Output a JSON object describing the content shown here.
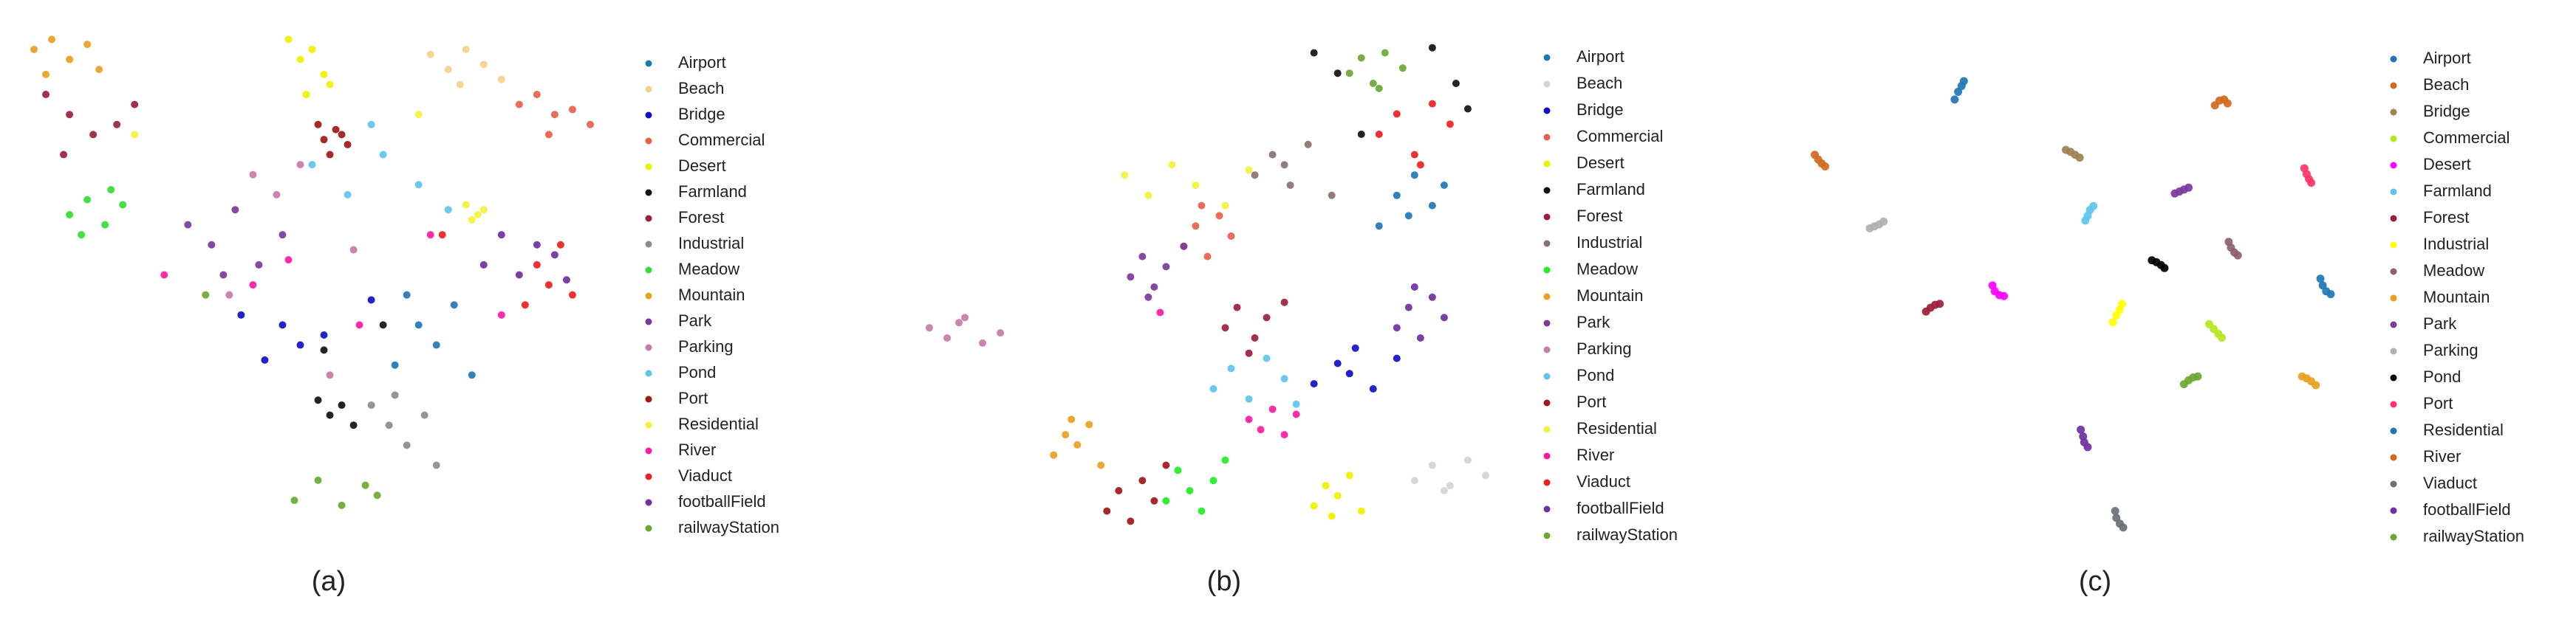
{
  "chart_data": [
    {
      "type": "scatter",
      "caption": "(a)",
      "xlim": [
        0,
        100
      ],
      "ylim": [
        0,
        100
      ],
      "series": [
        {
          "name": "Airport",
          "color": "#1f77b4",
          "x": [
            64,
            68,
            71,
            74,
            77,
            66
          ],
          "values": [
            32,
            40,
            36,
            44,
            30,
            46
          ]
        },
        {
          "name": "Beach",
          "color": "#f5d08a",
          "x": [
            70,
            73,
            76,
            79,
            82,
            75
          ],
          "values": [
            94,
            91,
            95,
            92,
            89,
            88
          ]
        },
        {
          "name": "Bridge",
          "color": "#1010c8",
          "x": [
            45,
            48,
            38,
            52,
            42,
            60
          ],
          "values": [
            40,
            36,
            42,
            38,
            33,
            45
          ]
        },
        {
          "name": "Commercial",
          "color": "#e8604c",
          "x": [
            85,
            88,
            91,
            94,
            97,
            90
          ],
          "values": [
            84,
            86,
            82,
            83,
            80,
            78
          ]
        },
        {
          "name": "Desert",
          "color": "#f0f000",
          "x": [
            46,
            48,
            50,
            52,
            53,
            49
          ],
          "values": [
            97,
            93,
            95,
            90,
            88,
            86
          ]
        },
        {
          "name": "Farmland",
          "color": "#111111",
          "x": [
            51,
            53,
            55,
            57,
            52,
            62
          ],
          "values": [
            25,
            22,
            24,
            20,
            35,
            40
          ]
        },
        {
          "name": "Forest",
          "color": "#9b1f3a",
          "x": [
            5,
            9,
            13,
            17,
            20,
            8
          ],
          "values": [
            86,
            82,
            78,
            80,
            84,
            74
          ]
        },
        {
          "name": "Industrial",
          "color": "#8c8c8c",
          "x": [
            60,
            63,
            66,
            69,
            71,
            64
          ],
          "values": [
            24,
            20,
            16,
            22,
            12,
            26
          ]
        },
        {
          "name": "Meadow",
          "color": "#33dd33",
          "x": [
            9,
            12,
            15,
            18,
            11,
            16
          ],
          "values": [
            62,
            65,
            60,
            64,
            58,
            67
          ]
        },
        {
          "name": "Mountain",
          "color": "#e8a020",
          "x": [
            3,
            6,
            9,
            12,
            14,
            5
          ],
          "values": [
            95,
            97,
            93,
            96,
            91,
            90
          ]
        },
        {
          "name": "Park",
          "color": "#7a3a9a",
          "x": [
            29,
            33,
            37,
            41,
            45,
            35
          ],
          "values": [
            60,
            56,
            63,
            52,
            58,
            50
          ]
        },
        {
          "name": "Parking",
          "color": "#c87aa8",
          "x": [
            40,
            44,
            48,
            53,
            36,
            57
          ],
          "values": [
            70,
            66,
            72,
            30,
            46,
            55
          ]
        },
        {
          "name": "Pond",
          "color": "#5ec4ee",
          "x": [
            50,
            56,
            62,
            68,
            73,
            60
          ],
          "values": [
            72,
            66,
            74,
            68,
            63,
            80
          ]
        },
        {
          "name": "Port",
          "color": "#a01818",
          "x": [
            51,
            52,
            54,
            56,
            55,
            53
          ],
          "values": [
            80,
            77,
            79,
            76,
            78,
            74
          ]
        },
        {
          "name": "Residential",
          "color": "#f2f23a",
          "x": [
            76,
            77,
            79,
            78,
            68,
            20
          ],
          "values": [
            64,
            61,
            63,
            62,
            82,
            78
          ]
        },
        {
          "name": "River",
          "color": "#ff1aa0",
          "x": [
            40,
            46,
            58,
            70,
            25,
            82
          ],
          "values": [
            48,
            53,
            40,
            58,
            50,
            42
          ]
        },
        {
          "name": "Viaduct",
          "color": "#ee2020",
          "x": [
            86,
            88,
            90,
            92,
            94,
            72
          ],
          "values": [
            44,
            52,
            48,
            56,
            46,
            58
          ]
        },
        {
          "name": "footballField",
          "color": "#7030a0",
          "x": [
            79,
            82,
            85,
            88,
            91,
            93
          ],
          "values": [
            52,
            58,
            50,
            56,
            54,
            49
          ]
        },
        {
          "name": "railwayStation",
          "color": "#6aa832",
          "x": [
            47,
            51,
            55,
            59,
            61,
            32
          ],
          "values": [
            5,
            9,
            4,
            8,
            6,
            46
          ]
        }
      ]
    },
    {
      "type": "scatter",
      "caption": "(b)",
      "xlim": [
        0,
        100
      ],
      "ylim": [
        0,
        100
      ],
      "series": [
        {
          "name": "Airport",
          "color": "#1f77b4",
          "x": [
            79,
            82,
            85,
            88,
            90,
            84
          ],
          "values": [
            62,
            68,
            72,
            66,
            70,
            64
          ]
        },
        {
          "name": "Beach",
          "color": "#d8d0d8",
          "x": [
            85,
            88,
            91,
            94,
            97,
            90
          ],
          "values": [
            12,
            15,
            11,
            16,
            13,
            10
          ]
        },
        {
          "name": "Bridge",
          "color": "#1010c8",
          "x": [
            68,
            72,
            75,
            78,
            82,
            74
          ],
          "values": [
            31,
            35,
            38,
            30,
            36,
            33
          ]
        },
        {
          "name": "Commercial",
          "color": "#e8604c",
          "x": [
            46,
            48,
            50,
            52,
            54,
            49
          ],
          "values": [
            58,
            62,
            56,
            64,
            60,
            66
          ]
        },
        {
          "name": "Desert",
          "color": "#f0f000",
          "x": [
            68,
            70,
            72,
            74,
            76,
            71
          ],
          "values": [
            7,
            11,
            9,
            13,
            6,
            5
          ]
        },
        {
          "name": "Farmland",
          "color": "#111111",
          "x": [
            68,
            72,
            88,
            92,
            94,
            76
          ],
          "values": [
            96,
            92,
            97,
            90,
            85,
            80
          ]
        },
        {
          "name": "Forest",
          "color": "#9b1f3a",
          "x": [
            53,
            55,
            58,
            60,
            63,
            57
          ],
          "values": [
            42,
            46,
            40,
            44,
            47,
            37
          ]
        },
        {
          "name": "Industrial",
          "color": "#8c7070",
          "x": [
            58,
            61,
            64,
            67,
            71,
            63
          ],
          "values": [
            72,
            76,
            70,
            78,
            68,
            74
          ]
        },
        {
          "name": "Meadow",
          "color": "#22ee22",
          "x": [
            43,
            45,
            47,
            49,
            51,
            53
          ],
          "values": [
            8,
            14,
            10,
            6,
            12,
            16
          ]
        },
        {
          "name": "Mountain",
          "color": "#e8a020",
          "x": [
            24,
            26,
            28,
            30,
            32,
            27
          ],
          "values": [
            17,
            21,
            19,
            23,
            15,
            24
          ]
        },
        {
          "name": "Park",
          "color": "#7a3a9a",
          "x": [
            37,
            39,
            41,
            43,
            46,
            40
          ],
          "values": [
            52,
            56,
            50,
            54,
            58,
            48
          ]
        },
        {
          "name": "Parking",
          "color": "#c87aa8",
          "x": [
            3,
            6,
            9,
            12,
            15,
            8
          ],
          "values": [
            42,
            40,
            44,
            39,
            41,
            43
          ]
        },
        {
          "name": "Pond",
          "color": "#5ec4ee",
          "x": [
            51,
            54,
            57,
            60,
            63,
            65
          ],
          "values": [
            30,
            34,
            28,
            36,
            32,
            27
          ]
        },
        {
          "name": "Port",
          "color": "#a01818",
          "x": [
            33,
            35,
            37,
            39,
            41,
            43
          ],
          "values": [
            6,
            10,
            4,
            12,
            8,
            15
          ]
        },
        {
          "name": "Residential",
          "color": "#f2f23a",
          "x": [
            36,
            40,
            44,
            48,
            53,
            57
          ],
          "values": [
            72,
            68,
            74,
            70,
            66,
            73
          ]
        },
        {
          "name": "River",
          "color": "#ff1aa0",
          "x": [
            57,
            59,
            61,
            63,
            65,
            42
          ],
          "values": [
            24,
            22,
            26,
            21,
            25,
            45
          ]
        },
        {
          "name": "Viaduct",
          "color": "#ee2020",
          "x": [
            79,
            82,
            85,
            88,
            91,
            86
          ],
          "values": [
            80,
            84,
            76,
            86,
            82,
            74
          ]
        },
        {
          "name": "footballField",
          "color": "#7030a0",
          "x": [
            82,
            84,
            86,
            88,
            90,
            85
          ],
          "values": [
            42,
            46,
            40,
            48,
            44,
            50
          ]
        },
        {
          "name": "railwayStation",
          "color": "#6aa832",
          "x": [
            74,
            76,
            78,
            80,
            83,
            79
          ],
          "values": [
            92,
            95,
            90,
            96,
            93,
            89
          ]
        }
      ]
    },
    {
      "type": "scatter",
      "caption": "(c)",
      "xlim": [
        0,
        100
      ],
      "ylim": [
        0,
        100
      ],
      "series": [
        {
          "name": "Airport",
          "color": "#1f77b4",
          "x": [
            28.6,
            29.2,
            29.8,
            30.2
          ],
          "values": [
            93,
            94.6,
            95.8,
            96.8
          ]
        },
        {
          "name": "Beach",
          "color": "#d2691e",
          "x": [
            74,
            74.8,
            75.6,
            76.2
          ],
          "values": [
            91.8,
            92.8,
            93,
            92.2
          ]
        },
        {
          "name": "Bridge",
          "color": "#a08050",
          "x": [
            48,
            48.8,
            49.6,
            50.4
          ],
          "values": [
            82.6,
            82.2,
            81.6,
            81
          ]
        },
        {
          "name": "Commercial",
          "color": "#b5e61d",
          "x": [
            73,
            73.8,
            74.6,
            75.2
          ],
          "values": [
            46.6,
            45.6,
            44.6,
            43.8
          ]
        },
        {
          "name": "Desert",
          "color": "#ff00ff",
          "x": [
            35.2,
            35.6,
            36.4,
            37.2
          ],
          "values": [
            54.6,
            53.4,
            52.6,
            52.4
          ]
        },
        {
          "name": "Farmland",
          "color": "#5ec4ee",
          "x": [
            51.4,
            51.8,
            52.2,
            52.8
          ],
          "values": [
            68,
            69,
            70.2,
            71
          ]
        },
        {
          "name": "Forest",
          "color": "#9b1f3a",
          "x": [
            23.6,
            24.4,
            25.2,
            26
          ],
          "values": [
            49.2,
            50,
            50.6,
            50.8
          ]
        },
        {
          "name": "Industrial",
          "color": "#ffff00",
          "x": [
            56.2,
            56.8,
            57.4,
            57.8
          ],
          "values": [
            47,
            48.4,
            49.6,
            50.8
          ]
        },
        {
          "name": "Meadow",
          "color": "#8b6070",
          "x": [
            76.4,
            76.8,
            77.4,
            78
          ],
          "values": [
            63.6,
            62.4,
            61.4,
            60.8
          ]
        },
        {
          "name": "Mountain",
          "color": "#e8a020",
          "x": [
            89.2,
            90,
            90.8,
            91.6
          ],
          "values": [
            35.8,
            35.4,
            34.8,
            34
          ]
        },
        {
          "name": "Park",
          "color": "#7a3a9a",
          "x": [
            67,
            67.8,
            68.6,
            69.4
          ],
          "values": [
            73.6,
            74,
            74.4,
            74.8
          ]
        },
        {
          "name": "Parking",
          "color": "#b0b0b0",
          "x": [
            13.8,
            14.6,
            15.4,
            16.2
          ],
          "values": [
            66.4,
            66.8,
            67.2,
            67.8
          ]
        },
        {
          "name": "Pond",
          "color": "#000000",
          "x": [
            63,
            63.8,
            64.6,
            65.2
          ],
          "values": [
            59.8,
            59.4,
            58.8,
            58.2
          ]
        },
        {
          "name": "Port",
          "color": "#ff3366",
          "x": [
            89.6,
            90,
            90.4,
            90.8
          ],
          "values": [
            78.8,
            77.6,
            76.6,
            75.8
          ]
        },
        {
          "name": "Residential",
          "color": "#1f77b4",
          "x": [
            92.4,
            92.8,
            93.4,
            94.2
          ],
          "values": [
            56,
            54.6,
            53.4,
            52.8
          ]
        },
        {
          "name": "River",
          "color": "#d2691e",
          "x": [
            4.2,
            4.8,
            5.4,
            6
          ],
          "values": [
            81.6,
            80.6,
            79.8,
            79.2
          ]
        },
        {
          "name": "Viaduct",
          "color": "#6a7078",
          "x": [
            56.6,
            56.8,
            57.4,
            58
          ],
          "values": [
            8,
            6.6,
            5.4,
            4.6
          ]
        },
        {
          "name": "footballField",
          "color": "#7030a0",
          "x": [
            50.6,
            51,
            51.2,
            51.8
          ],
          "values": [
            24.8,
            23.4,
            22.2,
            21.2
          ]
        },
        {
          "name": "railwayStation",
          "color": "#6aa832",
          "x": [
            68.6,
            69.4,
            70.2,
            71
          ],
          "values": [
            34.2,
            35,
            35.6,
            35.8
          ]
        }
      ]
    }
  ]
}
